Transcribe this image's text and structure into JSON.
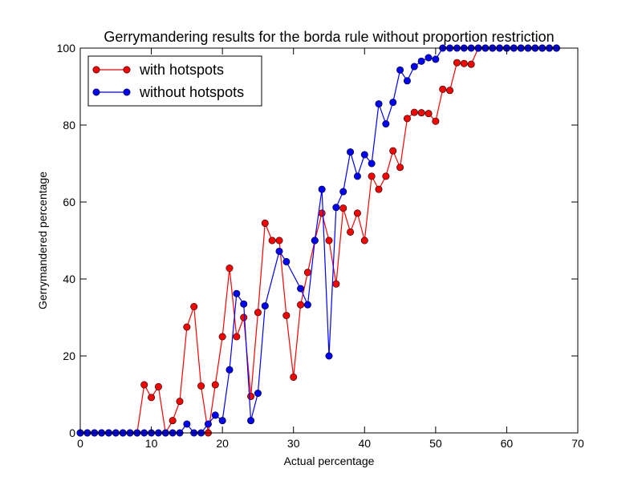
{
  "chart_data": {
    "type": "line",
    "title": "Gerrymandering results for the borda rule without proportion restriction",
    "xlabel": "Actual percentage",
    "ylabel": "Gerrymandered percentage",
    "xlim": [
      0,
      70
    ],
    "ylim": [
      0,
      100
    ],
    "xticks": [
      0,
      10,
      20,
      30,
      40,
      50,
      60,
      70
    ],
    "yticks": [
      0,
      20,
      40,
      60,
      80,
      100
    ],
    "grid": false,
    "legend_position": "top-left",
    "series": [
      {
        "name": "with hotspots",
        "color": "#ff0000",
        "marker": "circle",
        "points": [
          [
            0,
            0
          ],
          [
            1,
            0
          ],
          [
            2,
            0
          ],
          [
            3,
            0
          ],
          [
            4,
            0
          ],
          [
            5,
            0
          ],
          [
            6,
            0
          ],
          [
            7,
            0
          ],
          [
            8,
            0
          ],
          [
            9,
            12.5
          ],
          [
            10,
            9.2
          ],
          [
            11,
            12
          ],
          [
            12,
            0
          ],
          [
            13,
            3.2
          ],
          [
            14,
            8.2
          ],
          [
            15,
            27.5
          ],
          [
            16,
            32.8
          ],
          [
            17,
            12.2
          ],
          [
            18,
            0
          ],
          [
            19,
            12.5
          ],
          [
            20,
            25
          ],
          [
            21,
            42.8
          ],
          [
            22,
            25
          ],
          [
            23,
            30
          ],
          [
            24,
            9.5
          ],
          [
            25,
            31.3
          ],
          [
            26,
            54.5
          ],
          [
            27,
            50
          ],
          [
            28,
            50
          ],
          [
            29,
            30.5
          ],
          [
            30,
            14.5
          ],
          [
            31,
            33.3
          ],
          [
            32,
            41.7
          ],
          [
            33,
            50
          ],
          [
            34,
            57.1
          ],
          [
            35,
            50
          ],
          [
            36,
            38.7
          ],
          [
            37,
            58.4
          ],
          [
            38,
            52.2
          ],
          [
            39,
            57.1
          ],
          [
            40,
            50
          ],
          [
            41,
            66.7
          ],
          [
            42,
            63.3
          ],
          [
            43,
            66.7
          ],
          [
            44,
            73.3
          ],
          [
            45,
            69
          ],
          [
            46,
            81.7
          ],
          [
            47,
            83.3
          ],
          [
            48,
            83.2
          ],
          [
            49,
            83
          ],
          [
            50,
            81
          ],
          [
            51,
            89.3
          ],
          [
            52,
            89
          ],
          [
            53,
            96.2
          ],
          [
            54,
            96
          ],
          [
            55,
            95.8
          ],
          [
            56,
            100
          ],
          [
            57,
            100
          ],
          [
            58,
            100
          ],
          [
            59,
            100
          ],
          [
            60,
            100
          ],
          [
            61,
            100
          ],
          [
            62,
            100
          ],
          [
            63,
            100
          ],
          [
            64,
            100
          ],
          [
            65,
            100
          ],
          [
            66,
            100
          ],
          [
            67,
            100
          ]
        ]
      },
      {
        "name": "without hotspots",
        "color": "#0000ff",
        "marker": "circle",
        "points": [
          [
            0,
            0
          ],
          [
            1,
            0
          ],
          [
            2,
            0
          ],
          [
            3,
            0
          ],
          [
            4,
            0
          ],
          [
            5,
            0
          ],
          [
            6,
            0
          ],
          [
            7,
            0
          ],
          [
            8,
            0
          ],
          [
            9,
            0
          ],
          [
            10,
            0
          ],
          [
            11,
            0
          ],
          [
            12,
            0
          ],
          [
            13,
            0
          ],
          [
            14,
            0
          ],
          [
            15,
            2.3
          ],
          [
            16,
            0
          ],
          [
            17,
            0
          ],
          [
            18,
            2.3
          ],
          [
            19,
            4.6
          ],
          [
            20,
            3.2
          ],
          [
            21,
            16.4
          ],
          [
            22,
            36.2
          ],
          [
            23,
            33.5
          ],
          [
            24,
            3.2
          ],
          [
            25,
            10.3
          ],
          [
            26,
            33
          ],
          [
            28,
            47.2
          ],
          [
            29,
            44.5
          ],
          [
            31,
            37.5
          ],
          [
            32,
            33.3
          ],
          [
            33,
            50
          ],
          [
            34,
            63.3
          ],
          [
            35,
            20
          ],
          [
            36,
            58.6
          ],
          [
            37,
            62.7
          ],
          [
            38,
            73
          ],
          [
            39,
            66.7
          ],
          [
            40,
            72.3
          ],
          [
            41,
            70
          ],
          [
            42,
            85.5
          ],
          [
            43,
            80.3
          ],
          [
            44,
            85.9
          ],
          [
            45,
            94.3
          ],
          [
            46,
            91.5
          ],
          [
            47,
            95.2
          ],
          [
            48,
            96.6
          ],
          [
            49,
            97.5
          ],
          [
            50,
            97.1
          ],
          [
            51,
            100
          ],
          [
            52,
            100
          ],
          [
            53,
            100
          ],
          [
            54,
            100
          ],
          [
            55,
            100
          ],
          [
            56,
            100
          ],
          [
            57,
            100
          ],
          [
            58,
            100
          ],
          [
            59,
            100
          ],
          [
            60,
            100
          ],
          [
            61,
            100
          ],
          [
            62,
            100
          ],
          [
            63,
            100
          ],
          [
            64,
            100
          ],
          [
            65,
            100
          ],
          [
            66,
            100
          ],
          [
            67,
            100
          ]
        ]
      }
    ]
  }
}
